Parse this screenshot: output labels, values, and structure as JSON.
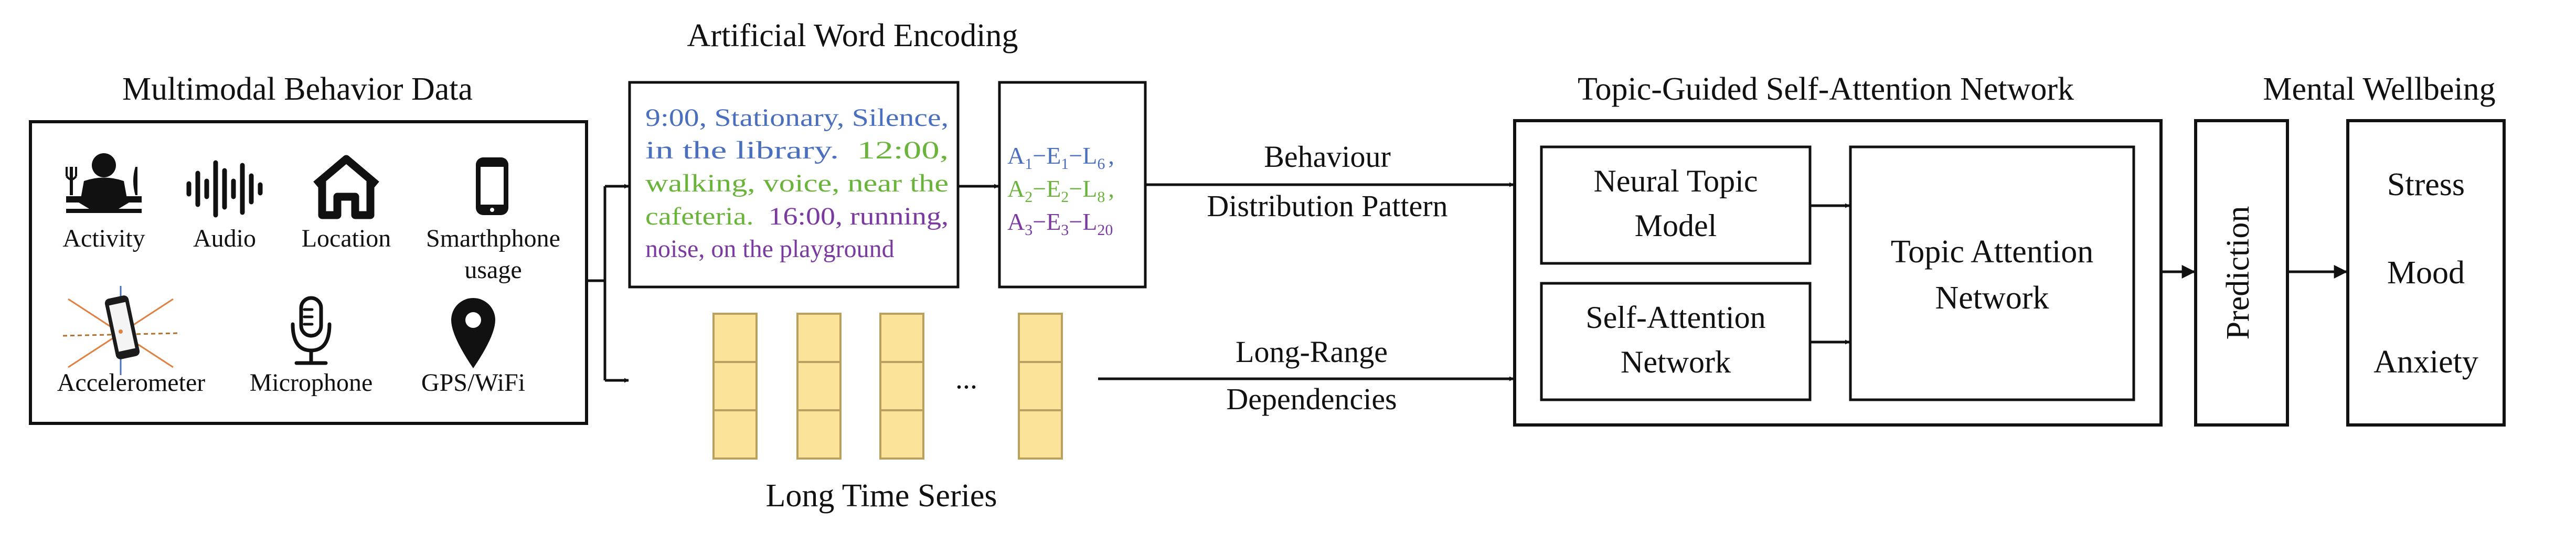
{
  "colors": {
    "stroke": "#111111",
    "blue": "#4a6fbe",
    "green": "#6ab43c",
    "purple": "#7a3aa0",
    "cell_fill": "#fbe39a",
    "cell_stroke": "#b7a060"
  },
  "sections": {
    "multimodal": "Multimodal Behavior Data",
    "encoding": "Artificial Word Encoding",
    "tgsan": "Topic-Guided Self-Attention Network",
    "wellbeing": "Mental Wellbeing",
    "long_series": "Long Time Series"
  },
  "sensors": {
    "activity": "Activity",
    "audio": "Audio",
    "location": "Location",
    "smartphone_1": "Smarthphone",
    "smartphone_2": "usage",
    "accelerometer": "Accelerometer",
    "microphone": "Microphone",
    "gps": "GPS/WiFi"
  },
  "sensor_icons": [
    "person-eating-icon",
    "sound-wave-icon",
    "home-icon",
    "smartphone-icon",
    "accelerometer-icon",
    "microphone-icon",
    "map-pin-icon"
  ],
  "encoding_text": {
    "line1": "9:00, Stationary, Silence,",
    "line2_blue": "in the library.",
    "line2_green": "12:00,",
    "line3": "walking, voice, near the",
    "line4_green": "cafeteria.",
    "line4_purple": "16:00, running,",
    "line5": "noise, on the playground"
  },
  "word_codes": [
    {
      "a": "A",
      "a_sub": "1",
      "e": "E",
      "e_sub": "1",
      "l": "L",
      "l_sub": "6",
      "suffix": ","
    },
    {
      "a": "A",
      "a_sub": "2",
      "e": "E",
      "e_sub": "2",
      "l": "L",
      "l_sub": "8",
      "suffix": ","
    },
    {
      "a": "A",
      "a_sub": "3",
      "e": "E",
      "e_sub": "3",
      "l": "L",
      "l_sub": "20",
      "suffix": ""
    }
  ],
  "code_dash": "−",
  "ellipsis": "...",
  "arrows": {
    "behaviour_1": "Behaviour",
    "behaviour_2": "Distribution Pattern",
    "long_range_1": "Long-Range",
    "long_range_2": "Dependencies"
  },
  "network": {
    "ntm_1": "Neural Topic",
    "ntm_2": "Model",
    "san_1": "Self-Attention",
    "san_2": "Network",
    "tan_1": "Topic Attention",
    "tan_2": "Network",
    "prediction": "Prediction"
  },
  "outcomes": [
    "Stress",
    "Mood",
    "Anxiety"
  ]
}
